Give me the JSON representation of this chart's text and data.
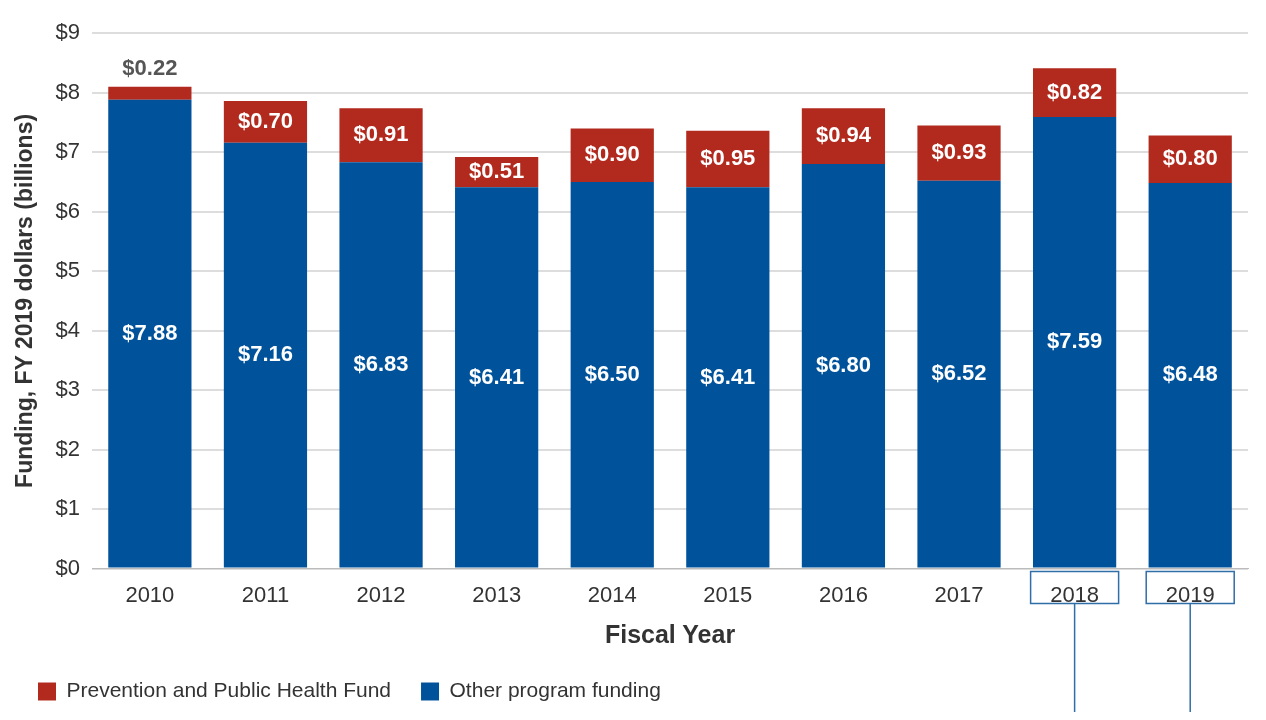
{
  "chart_data": {
    "type": "bar",
    "stacked": true,
    "xlabel": "Fiscal Year",
    "ylabel": "Funding, FY 2019 dollars (billions)",
    "categories": [
      "2010",
      "2011",
      "2012",
      "2013",
      "2014",
      "2015",
      "2016",
      "2017",
      "2018",
      "2019"
    ],
    "series": [
      {
        "name": "Other program funding",
        "color": "#00529b",
        "values": [
          7.88,
          7.16,
          6.83,
          6.41,
          6.5,
          6.41,
          6.8,
          6.52,
          7.59,
          6.48
        ],
        "value_labels": [
          "$7.88",
          "$7.16",
          "$6.83",
          "$6.41",
          "$6.50",
          "$6.41",
          "$6.80",
          "$6.52",
          "$7.59",
          "$6.48"
        ]
      },
      {
        "name": "Prevention and Public Health Fund",
        "color": "#b22a1e",
        "values": [
          0.22,
          0.7,
          0.91,
          0.51,
          0.9,
          0.95,
          0.94,
          0.93,
          0.82,
          0.8
        ],
        "value_labels": [
          "$0.22",
          "$0.70",
          "$0.91",
          "$0.51",
          "$0.90",
          "$0.95",
          "$0.94",
          "$0.93",
          "$0.82",
          "$0.80"
        ]
      }
    ],
    "ylim": [
      0,
      9
    ],
    "yticks": [
      {
        "value": 0,
        "label": "$0"
      },
      {
        "value": 1,
        "label": "$1"
      },
      {
        "value": 2,
        "label": "$2"
      },
      {
        "value": 3,
        "label": "$3"
      },
      {
        "value": 4,
        "label": "$4"
      },
      {
        "value": 5,
        "label": "$5"
      },
      {
        "value": 6,
        "label": "$6"
      },
      {
        "value": 7,
        "label": "$7"
      },
      {
        "value": 8,
        "label": "$8"
      },
      {
        "value": 9,
        "label": "$9"
      }
    ],
    "grid": "y",
    "legend": "bottom left"
  }
}
